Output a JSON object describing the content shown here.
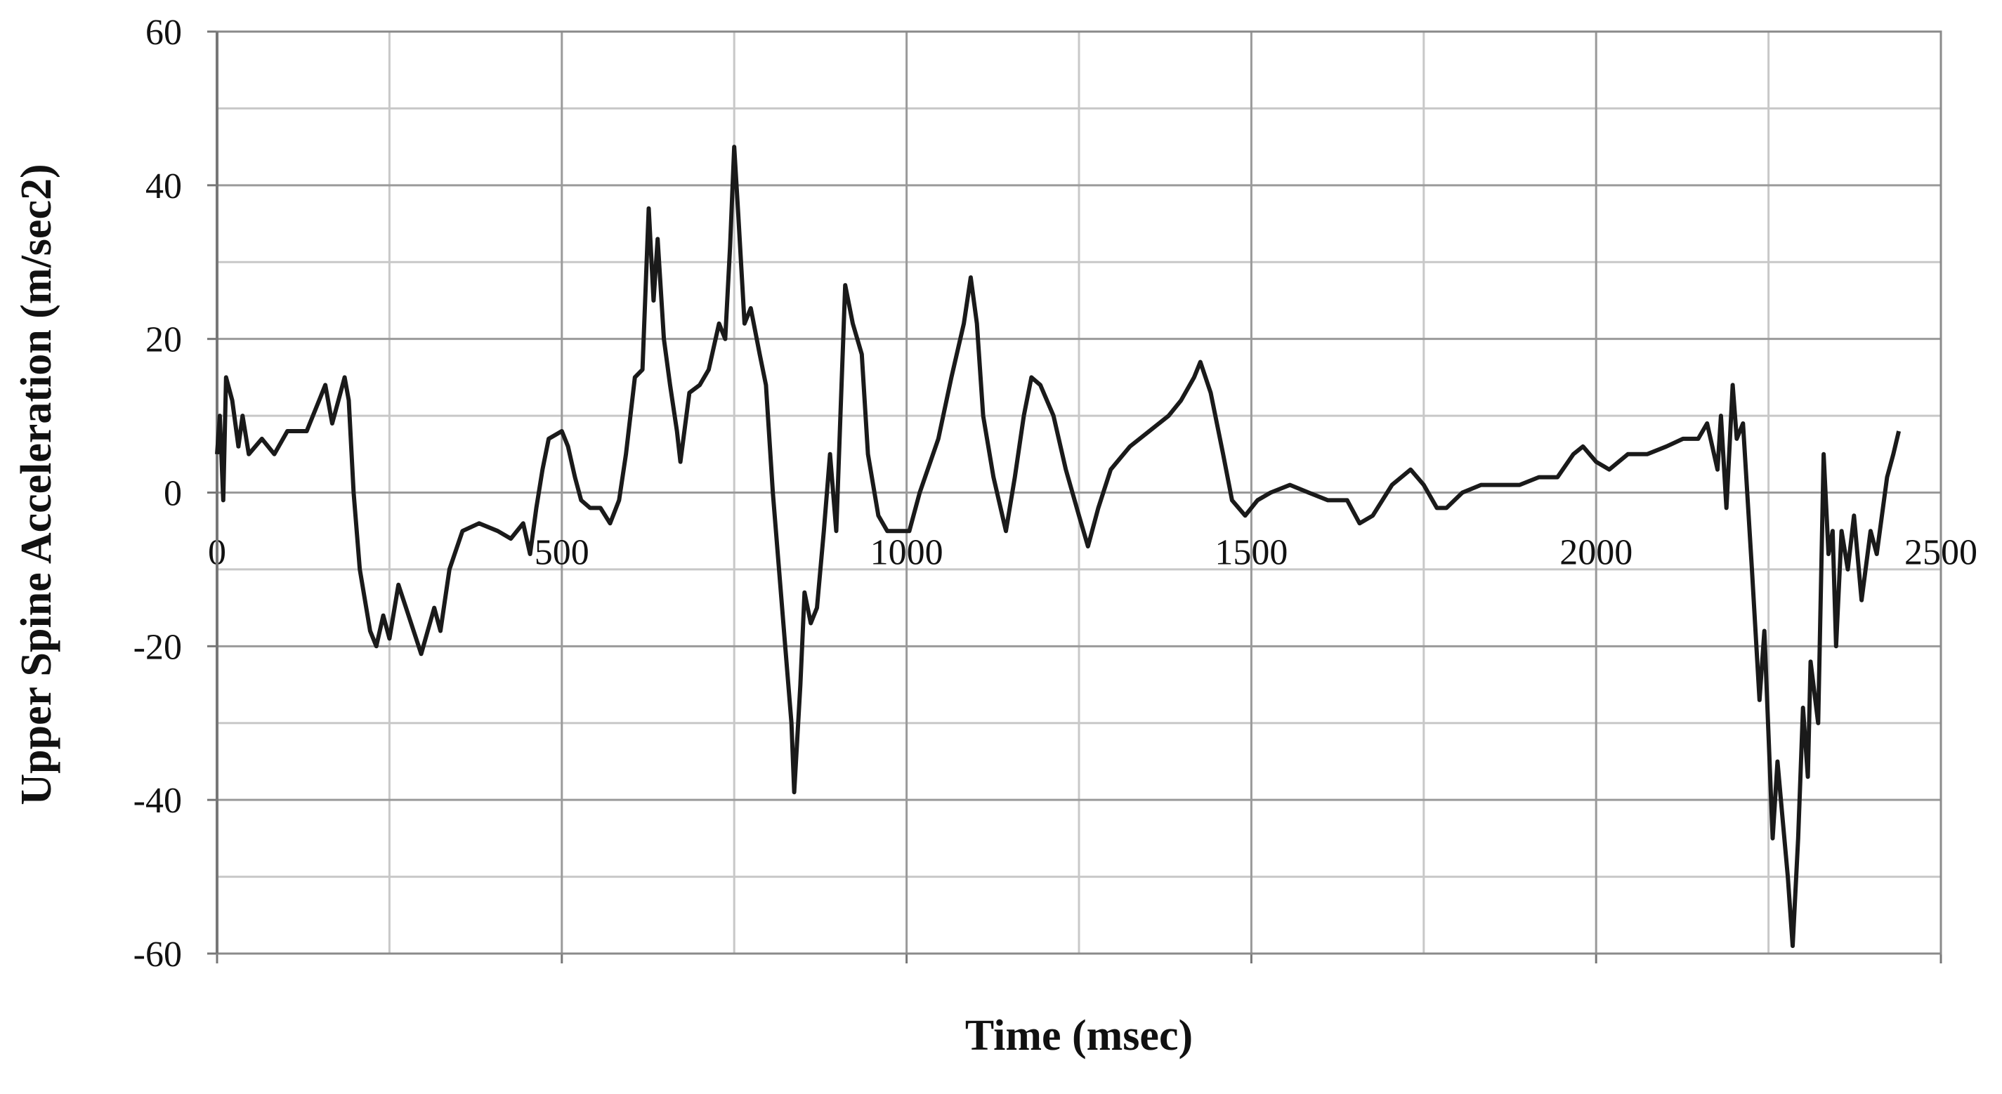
{
  "chart_data": {
    "type": "line",
    "x_label": "Time (msec)",
    "y_label": "Upper Spine Acceleration (m/sec2)",
    "xlim": [
      0,
      2500
    ],
    "xticks": [
      0,
      500,
      1000,
      1500,
      2000,
      2500
    ],
    "xminor": [
      250,
      750,
      1250,
      1750,
      2250
    ],
    "ylim": [
      -60,
      60
    ],
    "yticks": [
      -60,
      -40,
      -20,
      0,
      20,
      40,
      60
    ],
    "yminor": [
      -50,
      -30,
      -10,
      10,
      30,
      50
    ],
    "grid": true,
    "series": [
      {
        "color": "#1a1a1a",
        "x": [
          0,
          4,
          9,
          13,
          22,
          31,
          37,
          46,
          65,
          83,
          102,
          130,
          148,
          157,
          167,
          176,
          185,
          191,
          198,
          207,
          222,
          231,
          241,
          250,
          263,
          274,
          296,
          315,
          324,
          337,
          356,
          380,
          407,
          426,
          444,
          454,
          463,
          472,
          481,
          500,
          509,
          519,
          528,
          541,
          556,
          570,
          583,
          593,
          606,
          617,
          626,
          633,
          639,
          648,
          657,
          667,
          672,
          685,
          700,
          713,
          728,
          737,
          744,
          750,
          756,
          765,
          774,
          787,
          796,
          806,
          815,
          824,
          833,
          837,
          846,
          852,
          861,
          870,
          880,
          889,
          898,
          904,
          911,
          922,
          935,
          944,
          959,
          972,
          991,
          1004,
          1019,
          1046,
          1065,
          1083,
          1093,
          1102,
          1111,
          1126,
          1144,
          1157,
          1170,
          1181,
          1194,
          1213,
          1231,
          1250,
          1263,
          1278,
          1296,
          1324,
          1352,
          1380,
          1398,
          1417,
          1426,
          1441,
          1459,
          1472,
          1491,
          1509,
          1528,
          1556,
          1583,
          1611,
          1639,
          1657,
          1676,
          1704,
          1731,
          1750,
          1769,
          1783,
          1806,
          1833,
          1861,
          1889,
          1917,
          1944,
          1967,
          1981,
          2000,
          2019,
          2046,
          2074,
          2102,
          2126,
          2148,
          2161,
          2176,
          2181,
          2189,
          2198,
          2204,
          2213,
          2226,
          2237,
          2244,
          2256,
          2263,
          2270,
          2278,
          2285,
          2293,
          2300,
          2307,
          2311,
          2322,
          2330,
          2337,
          2343,
          2348,
          2356,
          2365,
          2374,
          2385,
          2398,
          2407,
          2422,
          2431,
          2439
        ],
        "values": [
          5,
          10,
          -1,
          15,
          12,
          6,
          10,
          5,
          7,
          5,
          8,
          8,
          12,
          14,
          9,
          12,
          15,
          12,
          0,
          -10,
          -18,
          -20,
          -16,
          -19,
          -12,
          -15,
          -21,
          -15,
          -18,
          -10,
          -5,
          -4,
          -5,
          -6,
          -4,
          -8,
          -2,
          3,
          7,
          8,
          6,
          2,
          -1,
          -2,
          -2,
          -4,
          -1,
          5,
          15,
          16,
          37,
          25,
          33,
          20,
          14,
          8,
          4,
          13,
          14,
          16,
          22,
          20,
          32,
          45,
          36,
          22,
          24,
          18,
          14,
          0,
          -10,
          -20,
          -30,
          -39,
          -25,
          -13,
          -17,
          -15,
          -5,
          5,
          -5,
          10,
          27,
          22,
          18,
          5,
          -3,
          -5,
          -5,
          -5,
          0,
          7,
          15,
          22,
          28,
          22,
          10,
          2,
          -5,
          2,
          10,
          15,
          14,
          10,
          3,
          -3,
          -7,
          -2,
          3,
          6,
          8,
          10,
          12,
          15,
          17,
          13,
          5,
          -1,
          -3,
          -1,
          0,
          1,
          0,
          -1,
          -1,
          -4,
          -3,
          1,
          3,
          1,
          -2,
          -2,
          0,
          1,
          1,
          1,
          2,
          2,
          5,
          6,
          4,
          3,
          5,
          5,
          6,
          7,
          7,
          9,
          3,
          10,
          -2,
          14,
          7,
          9,
          -10,
          -27,
          -18,
          -45,
          -35,
          -42,
          -50,
          -59,
          -45,
          -28,
          -37,
          -22,
          -30,
          5,
          -8,
          -5,
          -20,
          -5,
          -10,
          -3,
          -14,
          -5,
          -8,
          2,
          5,
          8
        ]
      }
    ]
  }
}
